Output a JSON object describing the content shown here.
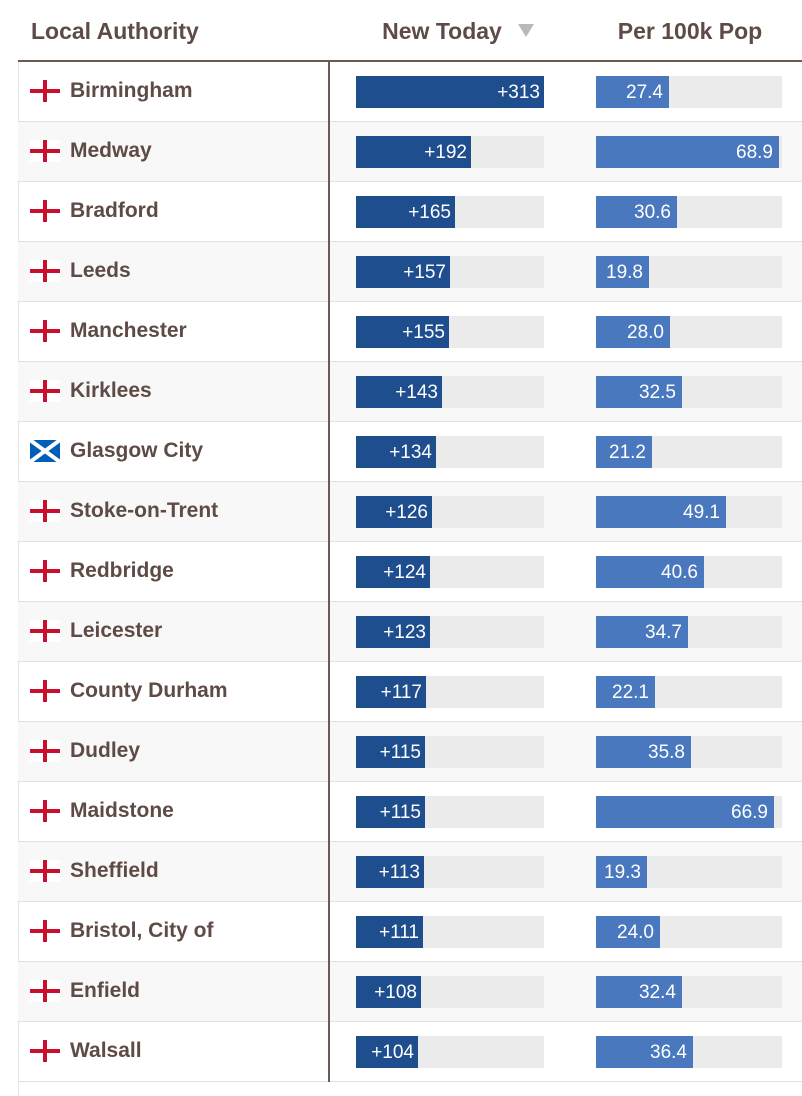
{
  "header": {
    "local_authority": "Local Authority",
    "new_today": "New Today",
    "per_100k": "Per 100k Pop"
  },
  "colors": {
    "new_today_bar": "#1f4e8f",
    "per_100k_bar": "#4a78be",
    "track": "#ebebeb",
    "england_cross": "#c8102e",
    "scotland_blue": "#005eb8"
  },
  "chart_data": {
    "type": "table",
    "sort": {
      "column": "New Today",
      "direction": "descending"
    },
    "new_today_max": 313,
    "per_100k_max": 70,
    "rows": [
      {
        "name": "Birmingham",
        "flag": "england-flag-icon",
        "new_today": "+313",
        "new_today_value": 313,
        "per_100k": "27.4",
        "per_100k_value": 27.4
      },
      {
        "name": "Medway",
        "flag": "england-flag-icon",
        "new_today": "+192",
        "new_today_value": 192,
        "per_100k": "68.9",
        "per_100k_value": 68.9
      },
      {
        "name": "Bradford",
        "flag": "england-flag-icon",
        "new_today": "+165",
        "new_today_value": 165,
        "per_100k": "30.6",
        "per_100k_value": 30.6
      },
      {
        "name": "Leeds",
        "flag": "england-flag-icon",
        "new_today": "+157",
        "new_today_value": 157,
        "per_100k": "19.8",
        "per_100k_value": 19.8
      },
      {
        "name": "Manchester",
        "flag": "england-flag-icon",
        "new_today": "+155",
        "new_today_value": 155,
        "per_100k": "28.0",
        "per_100k_value": 28.0
      },
      {
        "name": "Kirklees",
        "flag": "england-flag-icon",
        "new_today": "+143",
        "new_today_value": 143,
        "per_100k": "32.5",
        "per_100k_value": 32.5
      },
      {
        "name": "Glasgow City",
        "flag": "scotland-flag-icon",
        "new_today": "+134",
        "new_today_value": 134,
        "per_100k": "21.2",
        "per_100k_value": 21.2
      },
      {
        "name": "Stoke-on-Trent",
        "flag": "england-flag-icon",
        "new_today": "+126",
        "new_today_value": 126,
        "per_100k": "49.1",
        "per_100k_value": 49.1
      },
      {
        "name": "Redbridge",
        "flag": "england-flag-icon",
        "new_today": "+124",
        "new_today_value": 124,
        "per_100k": "40.6",
        "per_100k_value": 40.6
      },
      {
        "name": "Leicester",
        "flag": "england-flag-icon",
        "new_today": "+123",
        "new_today_value": 123,
        "per_100k": "34.7",
        "per_100k_value": 34.7
      },
      {
        "name": "County Durham",
        "flag": "england-flag-icon",
        "new_today": "+117",
        "new_today_value": 117,
        "per_100k": "22.1",
        "per_100k_value": 22.1
      },
      {
        "name": "Dudley",
        "flag": "england-flag-icon",
        "new_today": "+115",
        "new_today_value": 115,
        "per_100k": "35.8",
        "per_100k_value": 35.8
      },
      {
        "name": "Maidstone",
        "flag": "england-flag-icon",
        "new_today": "+115",
        "new_today_value": 115,
        "per_100k": "66.9",
        "per_100k_value": 66.9
      },
      {
        "name": "Sheffield",
        "flag": "england-flag-icon",
        "new_today": "+113",
        "new_today_value": 113,
        "per_100k": "19.3",
        "per_100k_value": 19.3
      },
      {
        "name": "Bristol, City of",
        "flag": "england-flag-icon",
        "new_today": "+111",
        "new_today_value": 111,
        "per_100k": "24.0",
        "per_100k_value": 24.0
      },
      {
        "name": "Enfield",
        "flag": "england-flag-icon",
        "new_today": "+108",
        "new_today_value": 108,
        "per_100k": "32.4",
        "per_100k_value": 32.4
      },
      {
        "name": "Walsall",
        "flag": "england-flag-icon",
        "new_today": "+104",
        "new_today_value": 104,
        "per_100k": "36.4",
        "per_100k_value": 36.4
      }
    ]
  }
}
